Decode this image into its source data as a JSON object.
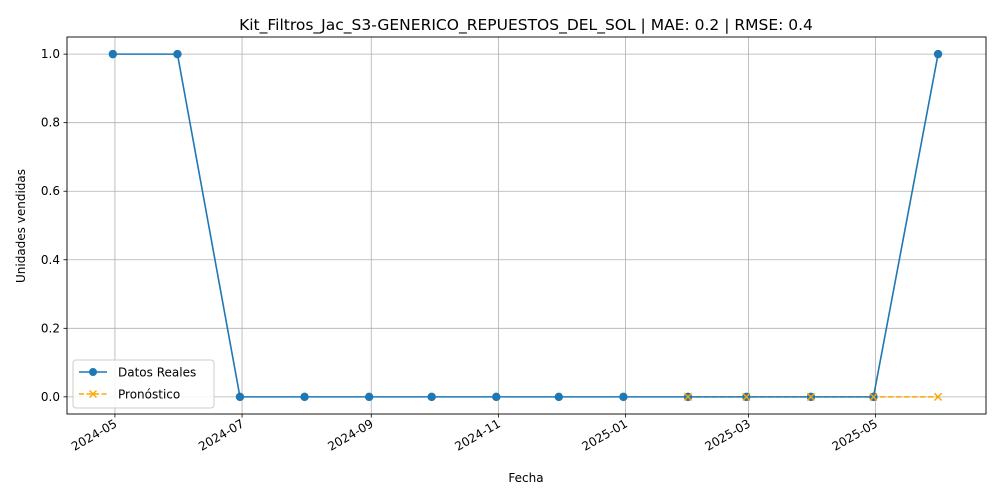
{
  "chart_data": {
    "type": "line",
    "title": "Kit_Filtros_Jac_S3-GENERICO_REPUESTOS_DEL_SOL | MAE: 0.2 | RMSE: 0.4",
    "xlabel": "Fecha",
    "ylabel": "Unidades vendidas",
    "xlim": [
      "2024-04-08",
      "2025-06-23"
    ],
    "ylim": [
      -0.05,
      1.05
    ],
    "x_ticks": [
      "2024-05",
      "2024-07",
      "2024-09",
      "2024-11",
      "2025-01",
      "2025-03",
      "2025-05"
    ],
    "y_ticks": [
      "0.0",
      "0.2",
      "0.4",
      "0.6",
      "0.8",
      "1.0"
    ],
    "grid": true,
    "legend_position": "lower-left",
    "series": [
      {
        "name": "Datos Reales",
        "color": "#1f77b4",
        "style": "solid",
        "marker": "circle",
        "x": [
          "2024-04-30",
          "2024-05-31",
          "2024-06-30",
          "2024-07-31",
          "2024-08-31",
          "2024-09-30",
          "2024-10-31",
          "2024-11-30",
          "2024-12-31",
          "2025-01-31",
          "2025-02-28",
          "2025-03-31",
          "2025-04-30",
          "2025-05-31"
        ],
        "values": [
          1,
          1,
          0,
          0,
          0,
          0,
          0,
          0,
          0,
          0,
          0,
          0,
          0,
          1
        ]
      },
      {
        "name": "Pronóstico",
        "color": "#ffa500",
        "style": "dashed",
        "marker": "x",
        "x": [
          "2025-01-31",
          "2025-02-28",
          "2025-03-31",
          "2025-04-30",
          "2025-05-31"
        ],
        "values": [
          0,
          0,
          0,
          0,
          0
        ]
      }
    ]
  }
}
